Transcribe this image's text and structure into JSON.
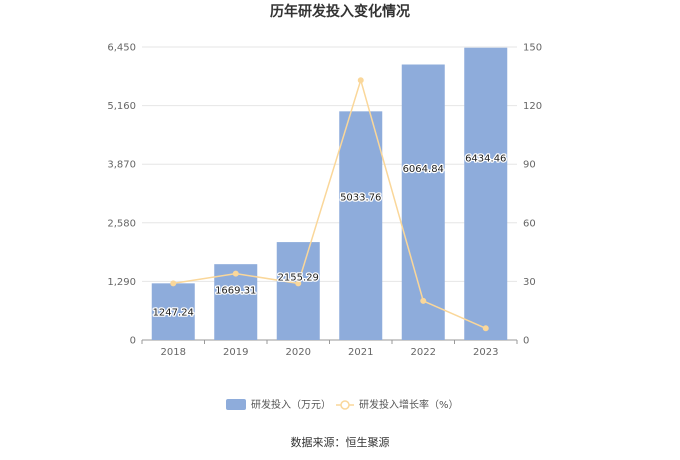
{
  "chart_data": {
    "type": "bar",
    "title": "历年研发投入变化情况",
    "categories": [
      "2018",
      "2019",
      "2020",
      "2021",
      "2022",
      "2023"
    ],
    "series": [
      {
        "name": "研发投入（万元）",
        "type": "bar",
        "axis": "left",
        "values": [
          1247.24,
          1669.31,
          2155.29,
          5033.76,
          6064.84,
          6434.46
        ],
        "data_labels": [
          "1247.24",
          "1669.31",
          "2155.29",
          "5033.76",
          "6064.84",
          "6434.46"
        ]
      },
      {
        "name": "研发投入增长率（%）",
        "type": "line",
        "axis": "right",
        "values": [
          29,
          34,
          29,
          133,
          20,
          6
        ]
      }
    ],
    "y_left": {
      "ylim": [
        0,
        6450
      ],
      "ticks": [
        "0",
        "1,290",
        "2,580",
        "3,870",
        "5,160",
        "6,450"
      ]
    },
    "y_right": {
      "ylim": [
        0,
        150
      ],
      "ticks": [
        "0",
        "30",
        "60",
        "90",
        "120",
        "150"
      ]
    },
    "grid": true,
    "legend_position": "bottom"
  },
  "footer": {
    "source": "数据来源：恒生聚源"
  },
  "colors": {
    "bar": "#8eacdb",
    "line": "#fad79a",
    "grid": "#e6e6e6",
    "axis": "#999999"
  }
}
